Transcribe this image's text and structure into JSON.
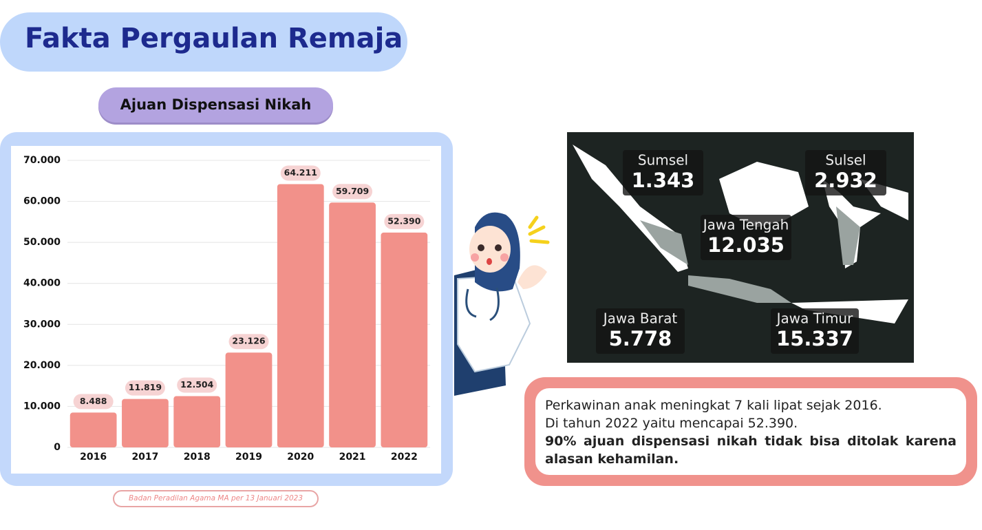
{
  "header": {
    "title": "Fakta Pergaulan Remaja"
  },
  "chart_data": {
    "type": "bar",
    "title": "Ajuan Dispensasi Nikah",
    "categories": [
      "2016",
      "2017",
      "2018",
      "2019",
      "2020",
      "2021",
      "2022"
    ],
    "values": [
      8488,
      11819,
      12504,
      23126,
      64211,
      59709,
      52390
    ],
    "value_labels": [
      "8.488",
      "11.819",
      "12.504",
      "23.126",
      "64.211",
      "59.709",
      "52.390"
    ],
    "color": "#f2918a",
    "ylim": [
      0,
      70000
    ],
    "yticks": [
      0,
      {
        "value": 10000,
        "label": "10.000"
      },
      {
        "value": 20000,
        "label": "20.000"
      },
      {
        "value": 30000,
        "label": "30.000"
      },
      {
        "value": 40000,
        "label": "40.000"
      },
      {
        "value": 50000,
        "label": "50.000"
      },
      {
        "value": 60000,
        "label": "60.000"
      },
      {
        "value": 70000,
        "label": "70.000"
      }
    ],
    "grid": true,
    "source": "Badan Peradilan Agama MA per 13 Januari 2023"
  },
  "map": {
    "regions": [
      {
        "name": "Sumsel",
        "value": "1.343"
      },
      {
        "name": "Sulsel",
        "value": "2.932"
      },
      {
        "name": "Jawa Tengah",
        "value": "12.035"
      },
      {
        "name": "Jawa Barat",
        "value": "5.778"
      },
      {
        "name": "Jawa Timur",
        "value": "15.337"
      }
    ]
  },
  "note": {
    "lines": [
      "Perkawinan anak meningkat 7 kali lipat sejak 2016.",
      "Di tahun 2022 yaitu mencapai 52.390."
    ],
    "emphasis": "90% ajuan dispensasi nikah tidak bisa ditolak karena alasan kehamilan."
  }
}
